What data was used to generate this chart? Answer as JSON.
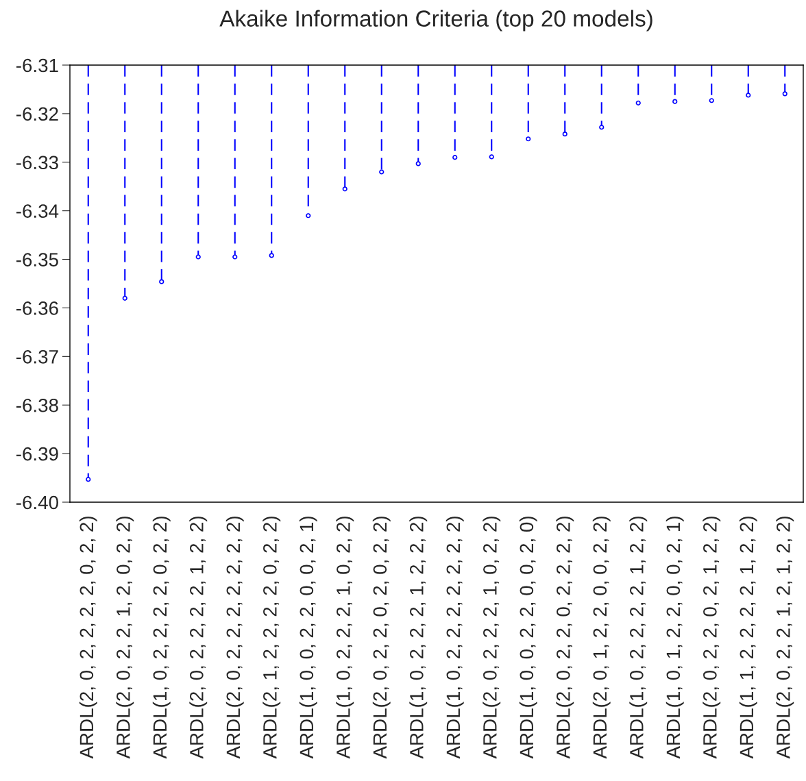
{
  "chart_data": {
    "type": "lollipop",
    "title": "Akaike Information Criteria (top 20 models)",
    "categories": [
      "ARDL(2, 0, 2, 2, 2, 2, 0, 2, 2)",
      "ARDL(2, 0, 2, 2, 1, 2, 0, 2, 2)",
      "ARDL(1, 0, 2, 2, 2, 2, 0, 2, 2)",
      "ARDL(2, 0, 2, 2, 2, 2, 1, 2, 2)",
      "ARDL(2, 0, 2, 2, 2, 2, 2, 2, 2)",
      "ARDL(2, 1, 2, 2, 2, 2, 0, 2, 2)",
      "ARDL(1, 0, 0, 2, 2, 0, 0, 2, 1)",
      "ARDL(1, 0, 2, 2, 2, 1, 0, 2, 2)",
      "ARDL(2, 0, 2, 2, 0, 2, 0, 2, 2)",
      "ARDL(1, 0, 2, 2, 2, 1, 2, 2, 2)",
      "ARDL(1, 0, 2, 2, 2, 2, 2, 2, 2)",
      "ARDL(2, 0, 2, 2, 2, 1, 0, 2, 2)",
      "ARDL(1, 0, 0, 2, 2, 0, 0, 2, 0)",
      "ARDL(2, 0, 2, 2, 0, 2, 2, 2, 2)",
      "ARDL(2, 0, 1, 2, 2, 0, 0, 2, 2)",
      "ARDL(1, 0, 2, 2, 2, 2, 1, 2, 2)",
      "ARDL(1, 0, 1, 2, 2, 0, 0, 2, 1)",
      "ARDL(2, 0, 2, 2, 0, 2, 1, 2, 2)",
      "ARDL(1, 1, 2, 2, 2, 2, 1, 2, 2)",
      "ARDL(2, 0, 2, 2, 1, 2, 1, 2, 2)"
    ],
    "values": [
      -6.3953,
      -6.358,
      -6.3546,
      -6.3495,
      -6.3495,
      -6.3492,
      -6.341,
      -6.3355,
      -6.332,
      -6.3303,
      -6.329,
      -6.3289,
      -6.3252,
      -6.3242,
      -6.3228,
      -6.3178,
      -6.3175,
      -6.3173,
      -6.3162,
      -6.3159
    ],
    "color": "#0000ff",
    "marker": "circle",
    "line_style": "dashed",
    "grid": false,
    "ylim": [
      -6.4,
      -6.31
    ],
    "yticks": [
      {
        "value": -6.4,
        "label": "-6.40"
      },
      -6.39,
      -6.38,
      -6.37,
      -6.36,
      -6.35,
      -6.34,
      -6.33,
      -6.32,
      -6.31
    ]
  }
}
